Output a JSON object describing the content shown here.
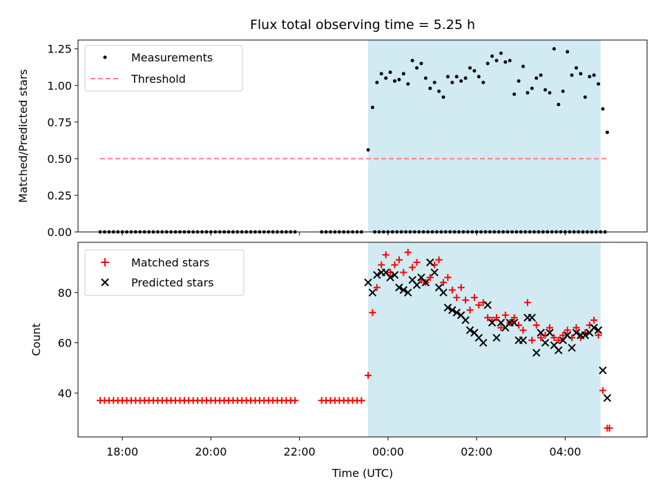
{
  "chart_data": {
    "type": "scatter",
    "title": "Flux total observing time = 5.25 h",
    "x_label": "Time (UTC)",
    "x_range_hours": [
      -7.0,
      5.85
    ],
    "x_tick_values": [
      -6,
      -4,
      -2,
      0,
      2,
      4
    ],
    "x_tick_labels": [
      "18:00",
      "20:00",
      "22:00",
      "00:00",
      "02:00",
      "04:00"
    ],
    "observing_window_hours": [
      -0.45,
      4.8
    ],
    "colors": {
      "window": "#add8e6",
      "measurement": "#000000",
      "threshold": "#ff8080",
      "matched": "#ff0000",
      "predicted": "#000000"
    },
    "panels": [
      {
        "id": "ratio",
        "y_label": "Matched/Predicted stars",
        "y_range": [
          0,
          1.31
        ],
        "y_ticks": [
          0,
          0.25,
          0.5,
          0.75,
          1.0,
          1.25
        ],
        "y_tick_labels": [
          "0.00",
          "0.25",
          "0.50",
          "0.75",
          "1.00",
          "1.25"
        ],
        "legend": [
          {
            "label": "Measurements",
            "marker": "dot"
          },
          {
            "label": "Threshold",
            "marker": "dashed-line"
          }
        ],
        "threshold": {
          "value": 0.5,
          "x_range_hours": [
            -6.5,
            4.95
          ]
        },
        "measurements": {
          "x": [
            -0.45,
            -0.35,
            -0.25,
            -0.15,
            -0.05,
            0.05,
            0.15,
            0.25,
            0.35,
            0.45,
            0.55,
            0.65,
            0.75,
            0.85,
            0.95,
            1.05,
            1.15,
            1.25,
            1.35,
            1.45,
            1.55,
            1.65,
            1.75,
            1.85,
            1.95,
            2.05,
            2.15,
            2.25,
            2.35,
            2.45,
            2.55,
            2.65,
            2.75,
            2.85,
            2.95,
            3.05,
            3.15,
            3.25,
            3.35,
            3.45,
            3.55,
            3.65,
            3.75,
            3.85,
            3.95,
            4.05,
            4.15,
            4.25,
            4.35,
            4.45,
            4.55,
            4.65,
            4.75,
            4.85,
            4.95
          ],
          "y": [
            0.56,
            0.85,
            1.02,
            1.08,
            1.05,
            1.09,
            1.03,
            1.04,
            1.08,
            1.01,
            1.17,
            1.12,
            1.15,
            1.05,
            0.98,
            1.02,
            0.96,
            0.92,
            1.06,
            1.02,
            1.06,
            1.03,
            1.05,
            1.12,
            1.1,
            1.06,
            1.02,
            1.15,
            1.2,
            1.17,
            1.22,
            1.16,
            1.17,
            0.94,
            1.03,
            1.13,
            0.95,
            0.98,
            1.05,
            1.07,
            0.97,
            0.95,
            1.25,
            0.87,
            0.96,
            1.23,
            1.07,
            1.12,
            1.08,
            0.92,
            1.06,
            1.07,
            1.01,
            0.84,
            0.68
          ],
          "zero_x_start": -6.5,
          "zero_x_end": 4.95,
          "zero_x_step": 0.1,
          "zero_x_gaps": [
            [
              -2.05,
              -1.6
            ],
            [
              -0.55,
              -0.4
            ]
          ],
          "zero_value": 0.0
        }
      },
      {
        "id": "count",
        "y_label": "Count",
        "y_range": [
          22.5,
          100
        ],
        "y_ticks": [
          40,
          60,
          80
        ],
        "y_tick_labels": [
          "40",
          "60",
          "80"
        ],
        "legend": [
          {
            "label": "Matched stars",
            "marker": "plus"
          },
          {
            "label": "Predicted stars",
            "marker": "x"
          }
        ],
        "matched": {
          "x": [
            -0.45,
            -0.35,
            -0.25,
            -0.15,
            -0.05,
            0.05,
            0.15,
            0.25,
            0.35,
            0.45,
            0.55,
            0.65,
            0.75,
            0.85,
            0.95,
            1.05,
            1.15,
            1.25,
            1.35,
            1.45,
            1.55,
            1.65,
            1.75,
            1.85,
            1.95,
            2.05,
            2.15,
            2.25,
            2.35,
            2.45,
            2.55,
            2.65,
            2.75,
            2.85,
            2.95,
            3.05,
            3.15,
            3.25,
            3.35,
            3.45,
            3.55,
            3.65,
            3.75,
            3.85,
            3.95,
            4.05,
            4.15,
            4.25,
            4.35,
            4.45,
            4.55,
            4.65,
            4.75,
            4.85,
            4.95
          ],
          "y": [
            47,
            72,
            82,
            91,
            95,
            88,
            91,
            93,
            88,
            96,
            90,
            92,
            85,
            84,
            86,
            91,
            93,
            84,
            86,
            81,
            78,
            82,
            77,
            73,
            78,
            75,
            76,
            70,
            69,
            70,
            66,
            71,
            68,
            70,
            67,
            65,
            76,
            61,
            67,
            62,
            63,
            66,
            62,
            61,
            63,
            65,
            62,
            66,
            62,
            64,
            67,
            69,
            63,
            41,
            26
          ],
          "constant_value": 37,
          "constant_x_start": -6.5,
          "constant_x_end": -0.55,
          "constant_x_step": 0.1,
          "constant_x_gaps": [
            [
              -2.05,
              -1.6
            ]
          ],
          "extra_points": [
            [
              5.0,
              26
            ]
          ]
        },
        "predicted": {
          "x": [
            -0.45,
            -0.35,
            -0.25,
            -0.15,
            -0.05,
            0.05,
            0.15,
            0.25,
            0.35,
            0.45,
            0.55,
            0.65,
            0.75,
            0.85,
            0.95,
            1.05,
            1.15,
            1.25,
            1.35,
            1.45,
            1.55,
            1.65,
            1.75,
            1.85,
            1.95,
            2.05,
            2.15,
            2.25,
            2.35,
            2.45,
            2.55,
            2.65,
            2.75,
            2.85,
            2.95,
            3.05,
            3.15,
            3.25,
            3.35,
            3.45,
            3.55,
            3.65,
            3.75,
            3.85,
            3.95,
            4.05,
            4.15,
            4.25,
            4.35,
            4.45,
            4.55,
            4.65,
            4.75,
            4.85,
            4.95
          ],
          "y": [
            84,
            80,
            87,
            88,
            88,
            86,
            87,
            82,
            81,
            80,
            85,
            83,
            86,
            84,
            92,
            88,
            82,
            80,
            74,
            73,
            72,
            71,
            69,
            65,
            64,
            62,
            60,
            75,
            68,
            62,
            68,
            66,
            68,
            68,
            61,
            61,
            70,
            70,
            56,
            64,
            60,
            64,
            59,
            57,
            61,
            63,
            58,
            64,
            63,
            63,
            64,
            66,
            65,
            49,
            38
          ]
        }
      }
    ]
  }
}
